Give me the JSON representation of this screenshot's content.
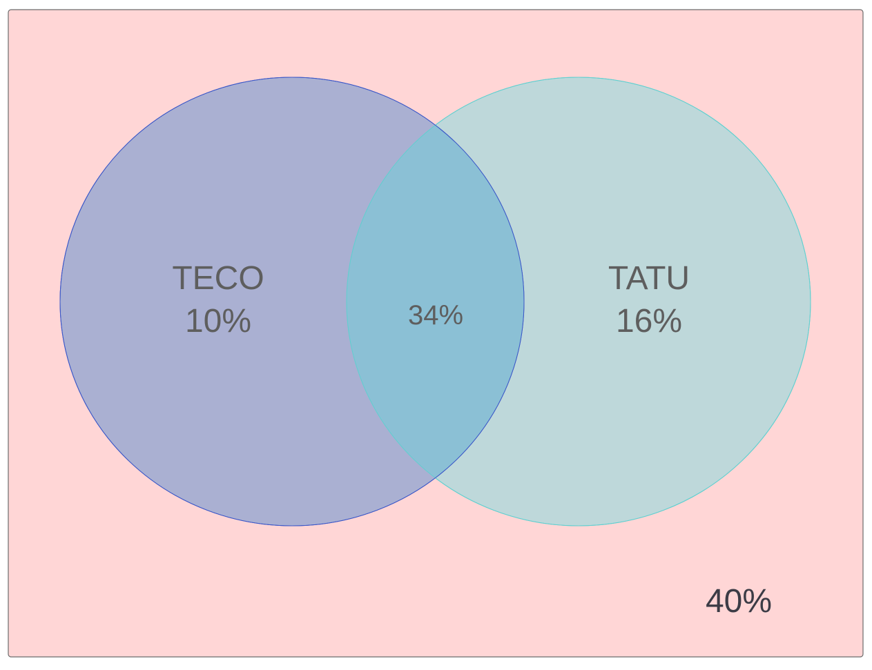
{
  "diagram": {
    "type": "venn",
    "universe": {
      "label": "40%",
      "value_percent": 40,
      "fill_color": "#ffd6d6",
      "stroke_color": "#6b6b6b"
    },
    "sets": [
      {
        "id": "left",
        "name": "TECO",
        "only_label": "10%",
        "only_percent": 10,
        "fill_color": "#aab0d2",
        "stroke_color": "#3a57c8"
      },
      {
        "id": "right",
        "name": "TATU",
        "only_label": "16%",
        "only_percent": 16,
        "fill_color": "#bed8da",
        "stroke_color": "#5fd0d0"
      }
    ],
    "intersection": {
      "label": "34%",
      "value_percent": 34,
      "fill_color": "#8bc0d5"
    },
    "text_color": "#5e5e5e",
    "outside_text_color": "#3c3c46"
  }
}
